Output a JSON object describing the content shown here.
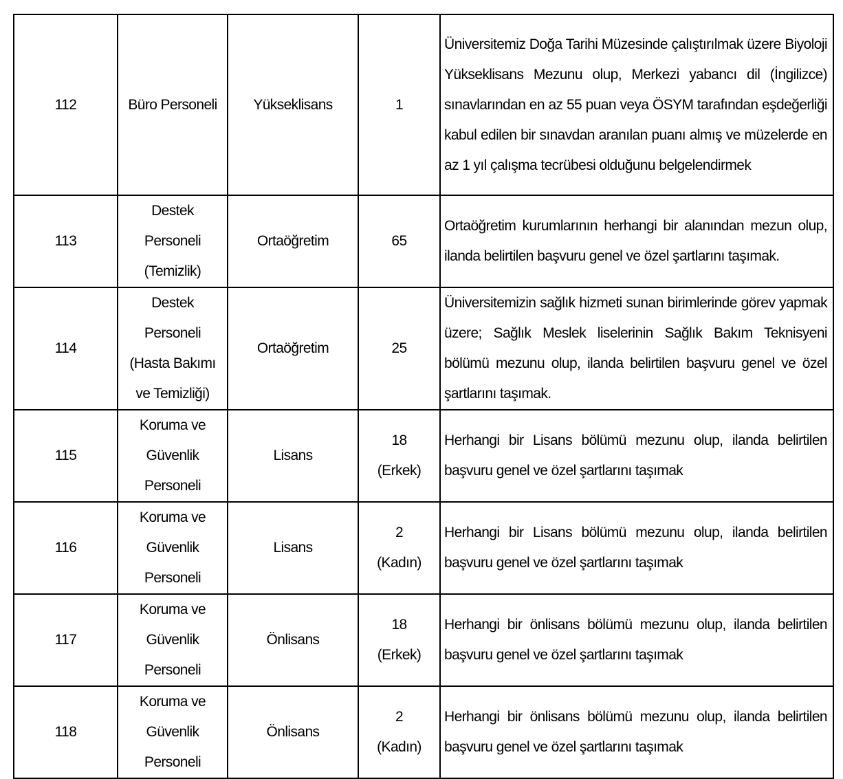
{
  "rows": [
    {
      "no": "112",
      "title": [
        "Büro Personeli"
      ],
      "education": "Yükseklisans",
      "count": [
        "1"
      ],
      "desc": "Üniversitemiz Doğa Tarihi Müzesinde çalıştırılmak üzere Biyoloji Yükseklisans Mezunu olup, Merkezi yabancı dil (İngilizce) sınavlarından en az 55 puan veya ÖSYM tarafından eşdeğerliği kabul edilen bir sınavdan aranılan puanı almış ve müzelerde en az 1 yıl çalışma tecrübesi olduğunu belgelendirmek"
    },
    {
      "no": "113",
      "title": [
        "Destek",
        "Personeli",
        "(Temizlik)"
      ],
      "education": "Ortaöğretim",
      "count": [
        "65"
      ],
      "desc": "Ortaöğretim kurumlarının herhangi bir alanından mezun olup, ilanda belirtilen başvuru genel ve özel şartlarını taşımak."
    },
    {
      "no": "114",
      "title": [
        "Destek",
        "Personeli",
        "(Hasta Bakımı",
        "ve Temizliği)"
      ],
      "education": "Ortaöğretim",
      "count": [
        "25"
      ],
      "desc": "Üniversitemizin sağlık hizmeti sunan birimlerinde görev yapmak üzere; Sağlık Meslek liselerinin Sağlık Bakım Teknisyeni bölümü mezunu olup, ilanda belirtilen başvuru genel ve özel şartlarını taşımak."
    },
    {
      "no": "115",
      "title": [
        "Koruma ve",
        "Güvenlik",
        "Personeli"
      ],
      "education": "Lisans",
      "count": [
        "18",
        "(Erkek)"
      ],
      "desc": "Herhangi bir Lisans bölümü mezunu olup, ilanda belirtilen başvuru genel ve özel şartlarını taşımak"
    },
    {
      "no": "116",
      "title": [
        "Koruma ve",
        "Güvenlik",
        "Personeli"
      ],
      "education": "Lisans",
      "count": [
        "2",
        "(Kadın)"
      ],
      "desc": "Herhangi bir Lisans bölümü mezunu olup, ilanda belirtilen başvuru genel ve özel şartlarını taşımak"
    },
    {
      "no": "117",
      "title": [
        "Koruma ve",
        "Güvenlik",
        "Personeli"
      ],
      "education": "Önlisans",
      "count": [
        "18",
        "(Erkek)"
      ],
      "desc": "Herhangi bir önlisans bölümü mezunu olup, ilanda belirtilen başvuru genel ve özel şartlarını taşımak"
    },
    {
      "no": "118",
      "title": [
        "Koruma ve",
        "Güvenlik",
        "Personeli"
      ],
      "education": "Önlisans",
      "count": [
        "2",
        "(Kadın)"
      ],
      "desc": "Herhangi bir önlisans bölümü mezunu olup, ilanda belirtilen başvuru genel ve özel şartlarını taşımak"
    }
  ]
}
